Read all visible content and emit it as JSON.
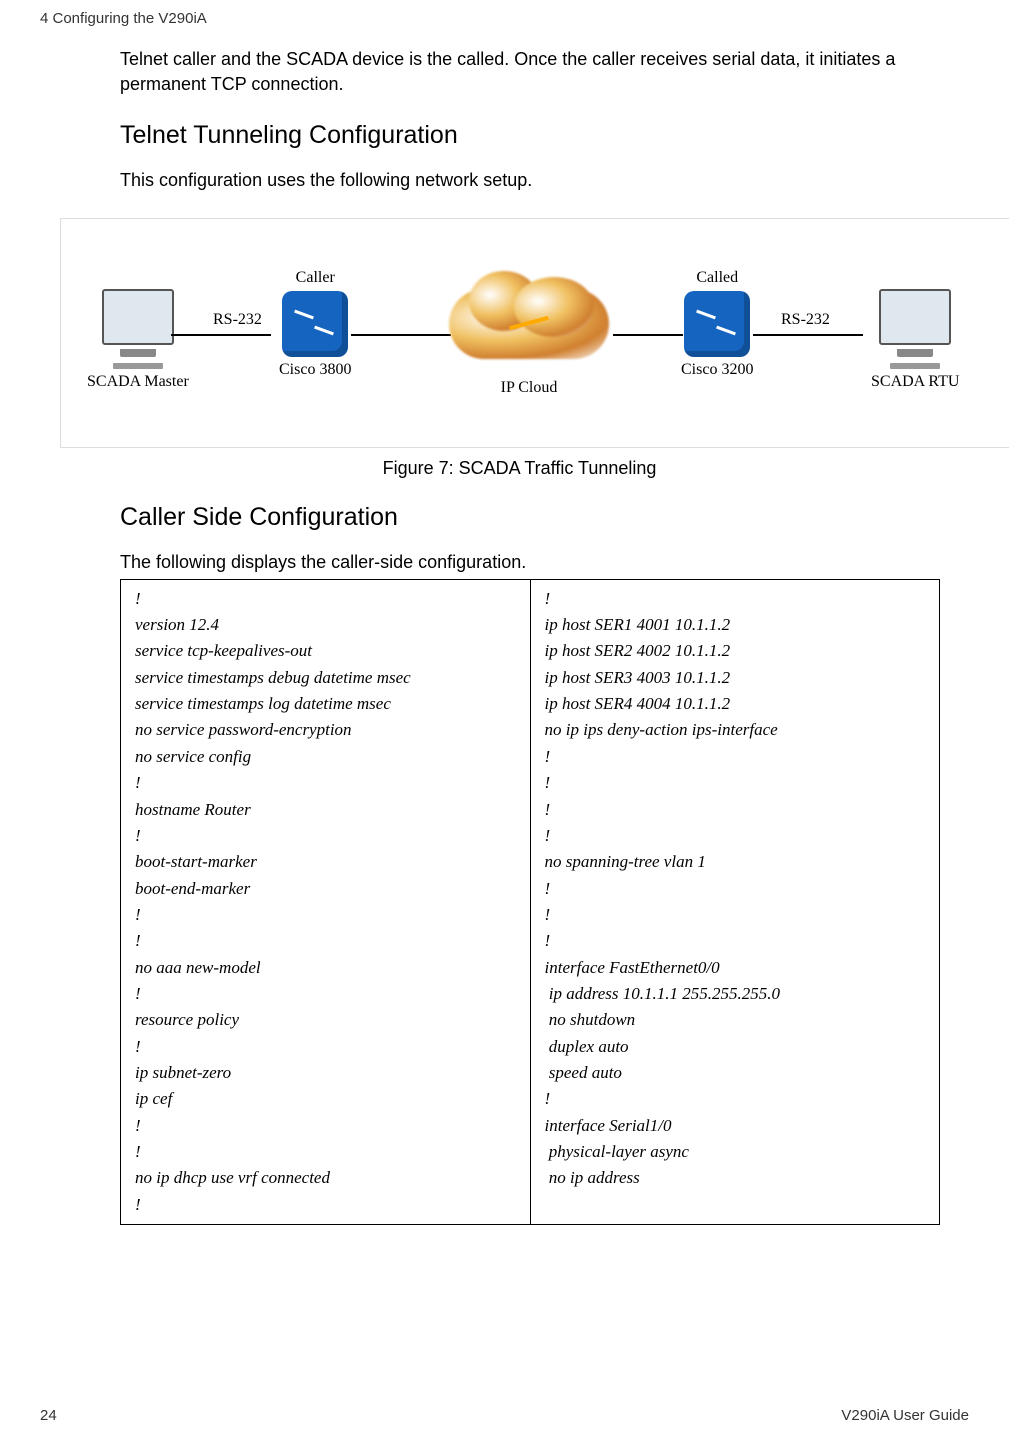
{
  "header": {
    "left": "4 Configuring the V290iA",
    "right": ""
  },
  "intro_paragraph": "Telnet caller and the SCADA device is the called. Once the caller receives serial data, it initiates a permanent TCP connection.",
  "section1_heading": "Telnet Tunneling Configuration",
  "section1_body": "This configuration uses the following network setup.",
  "diagram": {
    "scada_master": "SCADA Master",
    "scada_rtu": "SCADA RTU",
    "caller": "Caller",
    "called": "Called",
    "cisco3800": "Cisco 3800",
    "cisco3200": "Cisco 3200",
    "rs232_left": "RS-232",
    "rs232_right": "RS-232",
    "ip_cloud": "IP Cloud"
  },
  "figure_caption": "Figure 7: SCADA Traffic Tunneling",
  "section2_heading": "Caller Side Configuration",
  "section2_body": "The following displays the caller-side configuration.",
  "config_left": [
    "!",
    "version 12.4",
    "service tcp-keepalives-out",
    "service timestamps debug datetime msec",
    "service timestamps log datetime msec",
    "no service password-encryption",
    "no service config",
    "!",
    "hostname Router",
    "!",
    "boot-start-marker",
    "boot-end-marker",
    "!",
    "!",
    "no aaa new-model",
    "!",
    "resource policy",
    "!",
    "ip subnet-zero",
    "ip cef",
    "!",
    "!",
    "no ip dhcp use vrf connected",
    "!"
  ],
  "config_right": [
    "!",
    "ip host SER1 4001 10.1.1.2",
    "ip host SER2 4002 10.1.1.2",
    "ip host SER3 4003 10.1.1.2",
    "ip host SER4 4004 10.1.1.2",
    "no ip ips deny-action ips-interface",
    "!",
    "!",
    "!",
    "!",
    "no spanning-tree vlan 1",
    "!",
    "!",
    "!",
    "interface FastEthernet0/0",
    " ip address 10.1.1.1 255.255.255.0",
    " no shutdown",
    " duplex auto",
    " speed auto",
    "!",
    "interface Serial1/0",
    " physical-layer async",
    " no ip address",
    ""
  ],
  "footer": {
    "page": "24",
    "guide": "V290iA User Guide"
  }
}
